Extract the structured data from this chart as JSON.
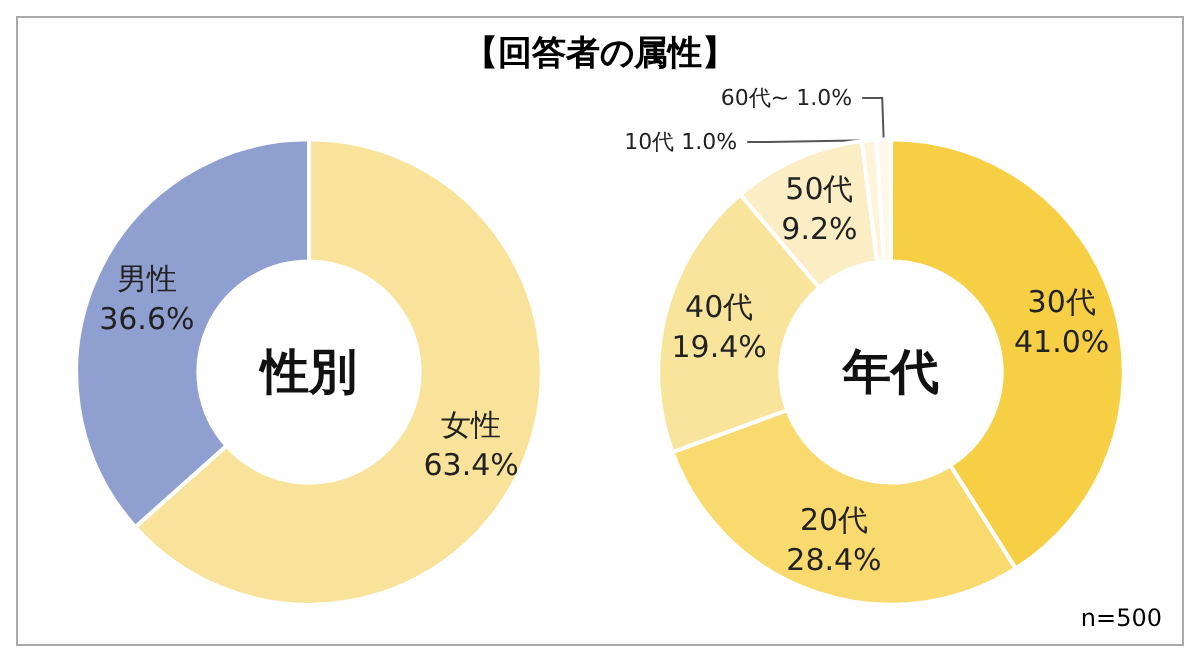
{
  "chart_data": [
    {
      "type": "donut",
      "title": "【回答者の属性】",
      "annotations": [
        "性別"
      ],
      "categories": [
        "女性",
        "男性"
      ],
      "values": [
        63.4,
        36.6
      ],
      "colors": [
        "#f9e29a",
        "#8f9fcf"
      ],
      "value_labels": [
        "63.4%",
        "36.6%"
      ]
    },
    {
      "type": "donut",
      "annotations": [
        "年代",
        "n=500"
      ],
      "categories": [
        "30代",
        "20代",
        "40代",
        "50代",
        "10代",
        "60代~"
      ],
      "values": [
        41.0,
        28.4,
        19.4,
        9.2,
        1.0,
        1.0
      ],
      "colors": [
        "#f6cf45",
        "#f8da6f",
        "#f9e49b",
        "#fbedc4",
        "#fdf4d9",
        "#fef8e9"
      ],
      "value_labels": [
        "41.0%",
        "28.4%",
        "19.4%",
        "9.2%",
        "1.0%",
        "1.0%"
      ]
    }
  ]
}
